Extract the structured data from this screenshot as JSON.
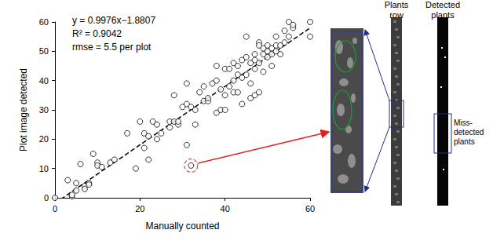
{
  "chart_data": {
    "type": "scatter",
    "x_label": "Manually counted",
    "y_label": "Plot image detected",
    "x": [
      0,
      3,
      4,
      4,
      5,
      5,
      6,
      7,
      7,
      8,
      8,
      9,
      10,
      10,
      11,
      13,
      14,
      19,
      17,
      20,
      21,
      21,
      22,
      22,
      23,
      24,
      24,
      25,
      27,
      27,
      28,
      28,
      29,
      29,
      30,
      31,
      31,
      31,
      32,
      32,
      33,
      33,
      34,
      35,
      35,
      36,
      36,
      37,
      38,
      38,
      38,
      39,
      39,
      40,
      40,
      40,
      41,
      41,
      42,
      42,
      42,
      43,
      43,
      43,
      44,
      44,
      44,
      45,
      45,
      45,
      46,
      46,
      46,
      47,
      47,
      47,
      47,
      48,
      48,
      48,
      48,
      49,
      49,
      49,
      50,
      50,
      50,
      51,
      51,
      51,
      52,
      52,
      52,
      53,
      53,
      54,
      54,
      55,
      55,
      56,
      56,
      60,
      60
    ],
    "values": [
      0,
      6,
      0.5,
      1,
      5,
      2.5,
      11.5,
      4,
      3,
      5,
      4.5,
      15,
      12,
      11,
      10.5,
      12,
      13,
      10,
      22,
      26,
      22,
      17,
      13,
      21,
      26,
      25,
      20,
      22,
      24,
      26,
      35,
      26,
      25,
      26,
      31,
      39,
      18,
      32,
      11,
      31,
      25,
      30,
      36,
      33,
      38,
      33,
      34,
      39,
      29,
      40,
      45,
      30,
      37,
      30,
      44,
      35,
      38,
      44,
      36,
      40,
      46,
      36,
      42,
      45,
      41,
      47,
      32,
      48,
      55,
      42,
      34,
      39,
      46,
      44,
      35,
      47,
      49,
      53,
      36,
      46,
      52,
      49,
      43,
      51,
      50,
      52,
      48,
      45,
      49,
      51,
      50,
      52,
      55,
      52,
      49,
      53,
      57,
      55,
      60,
      58,
      59,
      60,
      55
    ],
    "color": "#000000",
    "marker": "open circle",
    "xlim": [
      0,
      60
    ],
    "xticks": [
      0,
      20,
      40,
      60
    ],
    "ylim": [
      0,
      60
    ],
    "yticks": [
      0,
      10,
      20,
      30,
      40,
      50,
      60
    ],
    "grid": false,
    "trendline": {
      "slope": 0.9976,
      "intercept": -1.8807,
      "line_style": "dashed",
      "color": "#000000"
    },
    "annotations": [
      "y = 0.9976x−1.8807",
      "R² = 0.9042",
      "rmse = 5.5 per plot"
    ],
    "highlight": {
      "x": 32,
      "y": 11,
      "color": "#e02020",
      "line_style": "dashed"
    }
  },
  "image_panels": {
    "plants_row_label": [
      "Plants",
      "row"
    ],
    "detected_label": [
      "Detected",
      "plants"
    ],
    "miss_label": [
      "Miss-",
      "detected",
      "plants"
    ]
  }
}
